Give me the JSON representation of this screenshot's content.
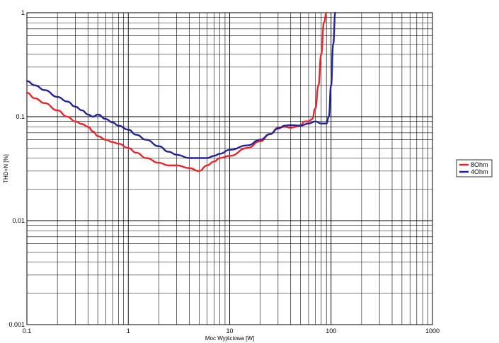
{
  "chart_data": {
    "type": "line",
    "title": "",
    "xlabel": "Moc Wyjściowa [W]",
    "ylabel": "THD+N [%]",
    "xscale": "log",
    "yscale": "log",
    "xlim": [
      0.1,
      1000
    ],
    "ylim": [
      0.001,
      1
    ],
    "grid": true,
    "legend_position": "right",
    "x_tick_labels": [
      "0.1",
      "1",
      "10",
      "100",
      "1000"
    ],
    "y_tick_labels": [
      "1",
      "0.1",
      "0.01",
      "0.001"
    ],
    "series": [
      {
        "name": "8Ohm",
        "color": "#e8262b",
        "x": [
          0.1,
          0.12,
          0.15,
          0.2,
          0.25,
          0.3,
          0.35,
          0.4,
          0.45,
          0.5,
          0.6,
          0.7,
          0.8,
          1.0,
          1.2,
          1.5,
          2.0,
          2.5,
          3.0,
          4.0,
          5.0,
          6.0,
          7.0,
          8.0,
          10,
          15,
          20,
          25,
          30,
          35,
          40,
          45,
          50,
          55,
          60,
          65,
          70,
          75,
          80,
          85,
          90
        ],
        "values": [
          0.17,
          0.15,
          0.135,
          0.115,
          0.1,
          0.09,
          0.085,
          0.08,
          0.072,
          0.065,
          0.06,
          0.057,
          0.055,
          0.05,
          0.045,
          0.04,
          0.036,
          0.034,
          0.034,
          0.032,
          0.03,
          0.034,
          0.037,
          0.04,
          0.042,
          0.05,
          0.058,
          0.068,
          0.078,
          0.08,
          0.078,
          0.08,
          0.083,
          0.09,
          0.09,
          0.095,
          0.12,
          0.2,
          0.4,
          0.8,
          1.0
        ]
      },
      {
        "name": "4Ohm",
        "color": "#23239a",
        "x": [
          0.1,
          0.12,
          0.15,
          0.2,
          0.25,
          0.3,
          0.35,
          0.4,
          0.45,
          0.5,
          0.6,
          0.7,
          0.8,
          1.0,
          1.2,
          1.5,
          2.0,
          2.5,
          3.0,
          4.0,
          5.0,
          6.0,
          7.0,
          8.0,
          10,
          15,
          20,
          25,
          30,
          35,
          40,
          50,
          60,
          70,
          80,
          90,
          95,
          100,
          105,
          110
        ],
        "values": [
          0.22,
          0.2,
          0.18,
          0.155,
          0.14,
          0.125,
          0.115,
          0.105,
          0.1,
          0.105,
          0.095,
          0.088,
          0.082,
          0.075,
          0.067,
          0.06,
          0.052,
          0.046,
          0.043,
          0.04,
          0.04,
          0.04,
          0.042,
          0.044,
          0.048,
          0.053,
          0.06,
          0.068,
          0.077,
          0.082,
          0.083,
          0.082,
          0.086,
          0.09,
          0.086,
          0.086,
          0.1,
          0.2,
          0.5,
          1.0
        ]
      }
    ]
  }
}
